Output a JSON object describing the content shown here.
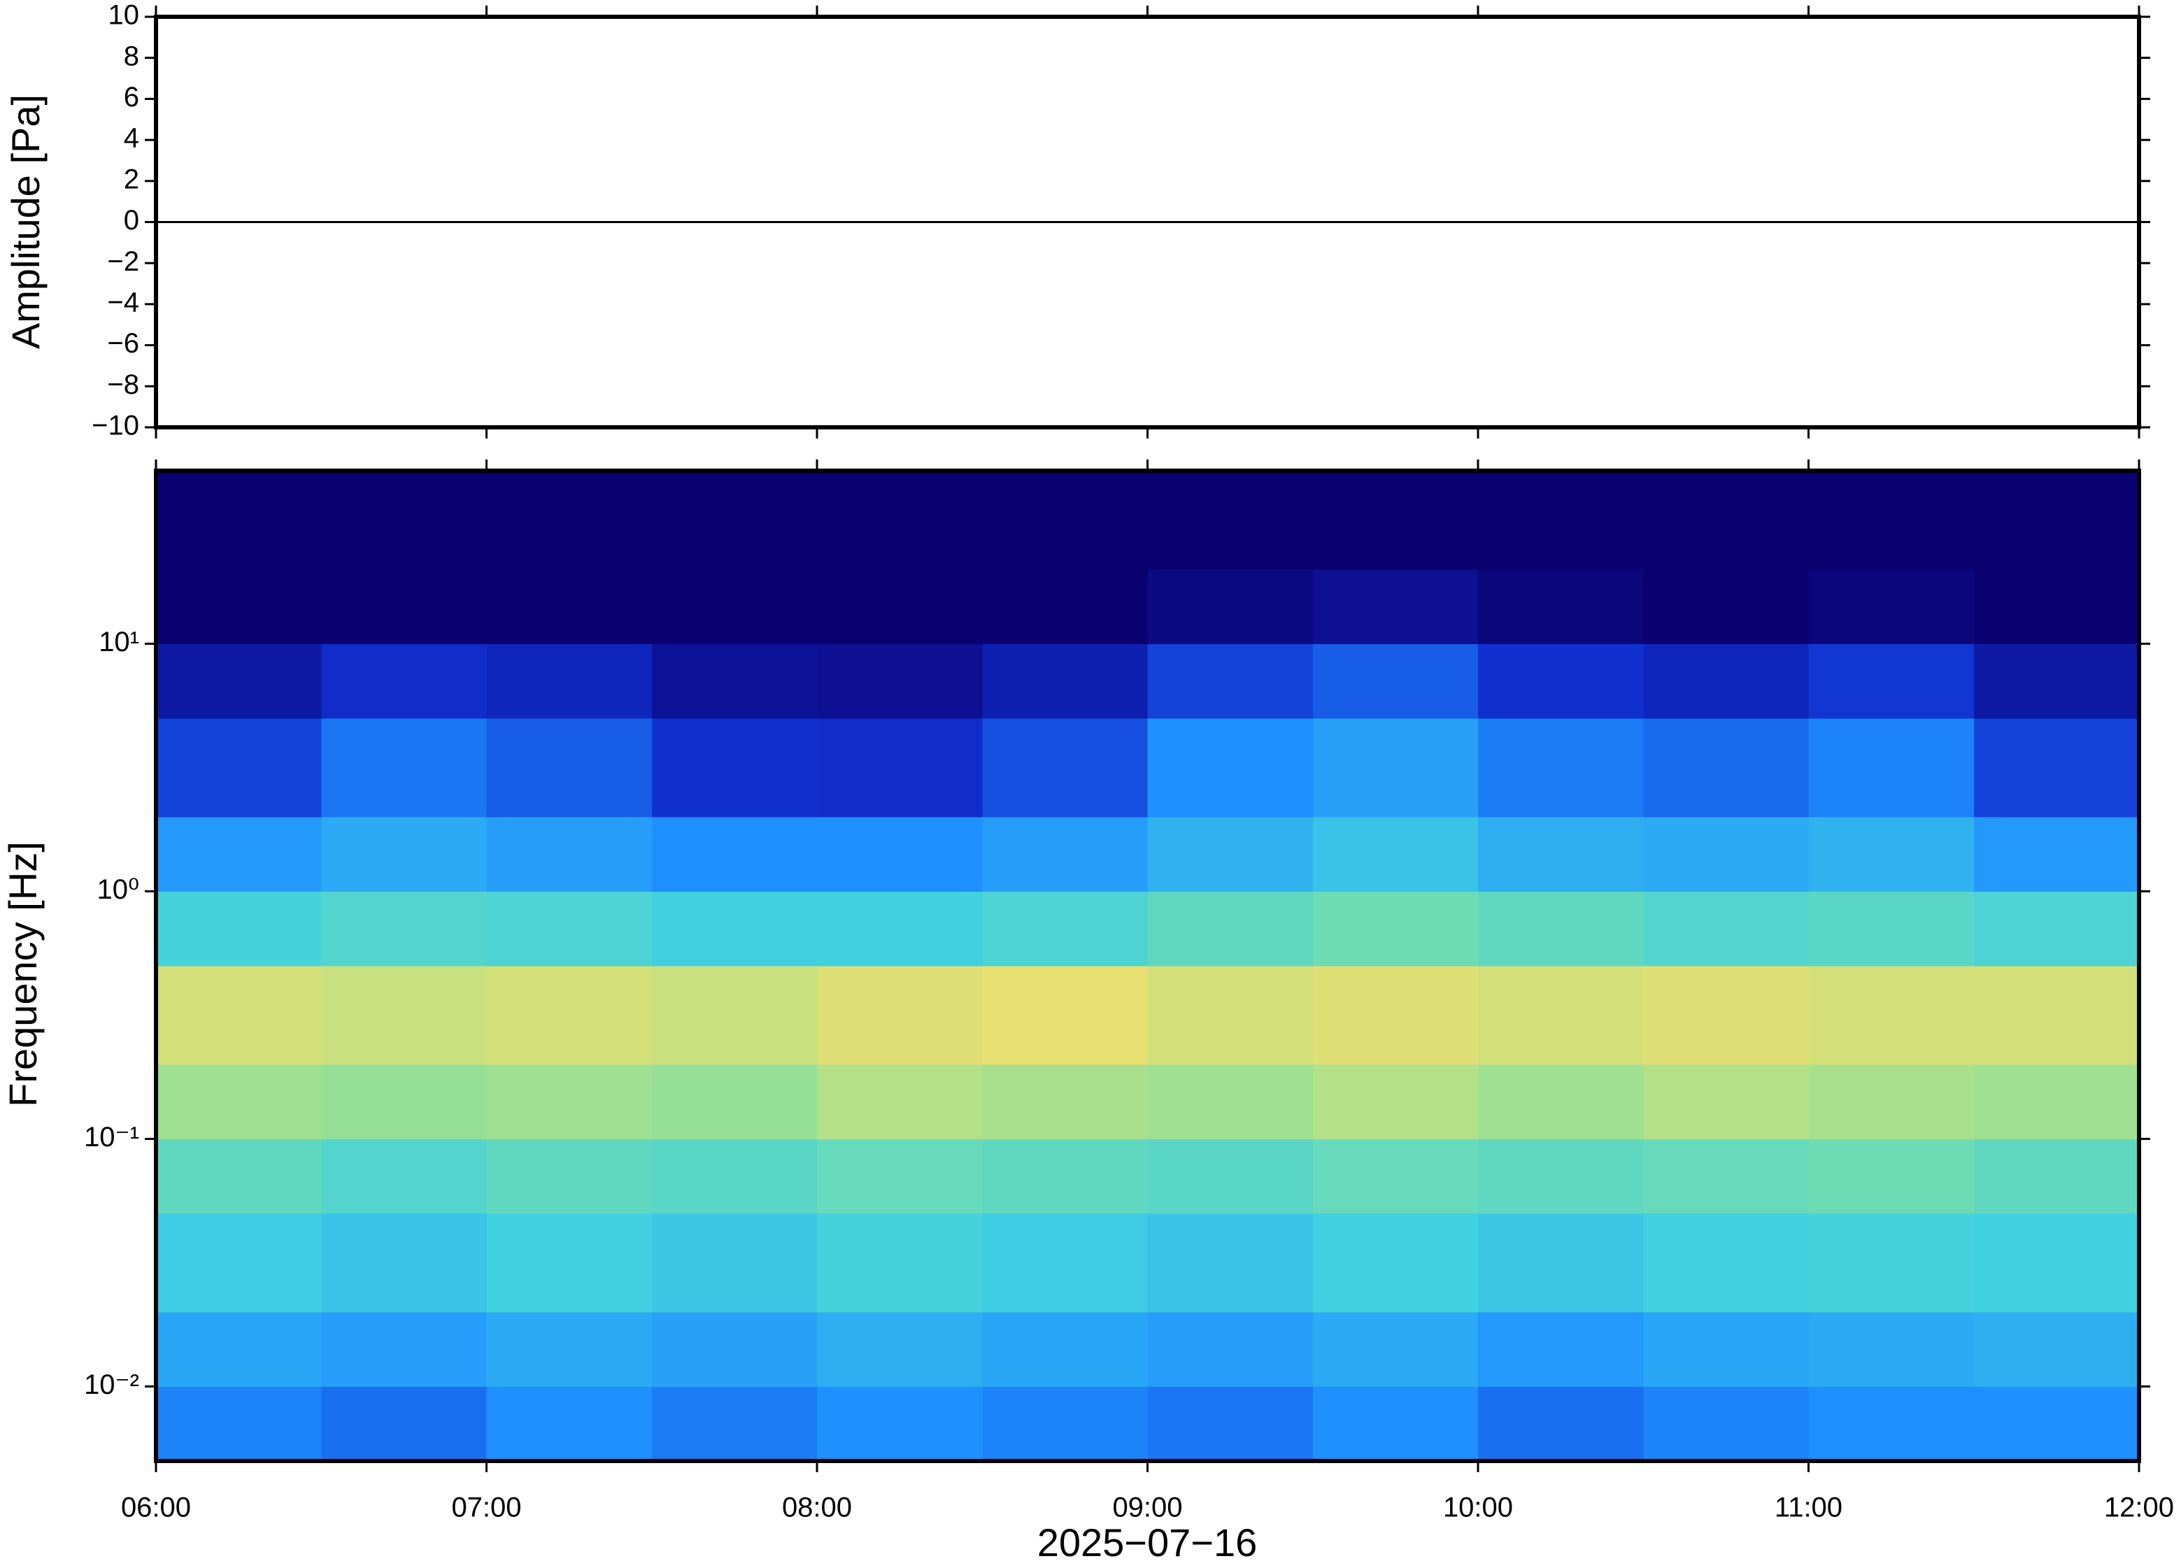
{
  "chart_data": [
    {
      "type": "line",
      "ylabel": "Amplitude [Pa]",
      "x": [
        "06:00",
        "07:00",
        "08:00",
        "09:00",
        "10:00",
        "11:00",
        "12:00"
      ],
      "values": [
        0,
        0,
        0,
        0,
        0,
        0,
        0
      ],
      "color": "#000000",
      "ylim": [
        -10,
        10
      ],
      "yticks": [
        {
          "value": -10,
          "label": "−10"
        },
        {
          "value": -8,
          "label": "−8"
        },
        {
          "value": -6,
          "label": "−6"
        },
        {
          "value": -4,
          "label": "−4"
        },
        {
          "value": -2,
          "label": "−2"
        },
        0,
        2,
        4,
        6,
        8,
        10
      ]
    },
    {
      "type": "heatmap",
      "ylabel": "Frequency [Hz]",
      "xlabel": "2025−07−16",
      "xlim": [
        "06:00",
        "12:00"
      ],
      "xticks": [
        "06:00",
        "07:00",
        "08:00",
        "09:00",
        "10:00",
        "11:00",
        "12:00"
      ],
      "ylim": [
        0.005,
        50
      ],
      "yscale": "log",
      "yticks": [
        {
          "value": 0.01,
          "label": "10⁻²"
        },
        {
          "value": 0.1,
          "label": "10⁻¹"
        },
        {
          "value": 1,
          "label": "10⁰"
        },
        {
          "value": 10,
          "label": "10¹"
        }
      ],
      "xbins": [
        "06:00",
        "06:30",
        "07:00",
        "07:30",
        "08:00",
        "08:30",
        "09:00",
        "09:30",
        "10:00",
        "10:30",
        "11:00",
        "11:30",
        "12:00"
      ],
      "ybins": [
        0.005,
        0.01,
        0.02,
        0.05,
        0.1,
        0.2,
        0.5,
        1,
        2,
        5,
        10,
        20,
        50
      ],
      "colorscale": [
        [
          0,
          "#0b0070"
        ],
        [
          0.15,
          "#1030d0"
        ],
        [
          0.3,
          "#1e90ff"
        ],
        [
          0.45,
          "#40d0e0"
        ],
        [
          0.55,
          "#80e0a0"
        ],
        [
          0.65,
          "#e8e070"
        ],
        [
          0.8,
          "#f0a040"
        ],
        [
          1,
          "#d03020"
        ]
      ],
      "z": [
        [
          0.28,
          0.25,
          0.3,
          0.27,
          0.3,
          0.28,
          0.26,
          0.3,
          0.25,
          0.28,
          0.3,
          0.3
        ],
        [
          0.35,
          0.33,
          0.36,
          0.34,
          0.37,
          0.35,
          0.33,
          0.36,
          0.32,
          0.35,
          0.36,
          0.37
        ],
        [
          0.44,
          0.42,
          0.45,
          0.43,
          0.46,
          0.44,
          0.42,
          0.45,
          0.43,
          0.45,
          0.46,
          0.45
        ],
        [
          0.5,
          0.48,
          0.5,
          0.49,
          0.51,
          0.5,
          0.49,
          0.51,
          0.5,
          0.51,
          0.52,
          0.5
        ],
        [
          0.58,
          0.57,
          0.58,
          0.57,
          0.6,
          0.59,
          0.58,
          0.6,
          0.58,
          0.6,
          0.59,
          0.58
        ],
        [
          0.63,
          0.62,
          0.63,
          0.62,
          0.64,
          0.65,
          0.63,
          0.64,
          0.63,
          0.64,
          0.63,
          0.63
        ],
        [
          0.46,
          0.48,
          0.47,
          0.45,
          0.45,
          0.47,
          0.5,
          0.52,
          0.5,
          0.48,
          0.49,
          0.47
        ],
        [
          0.32,
          0.36,
          0.33,
          0.3,
          0.3,
          0.33,
          0.38,
          0.42,
          0.37,
          0.36,
          0.38,
          0.32
        ],
        [
          0.18,
          0.26,
          0.22,
          0.15,
          0.14,
          0.2,
          0.3,
          0.34,
          0.27,
          0.24,
          0.28,
          0.18
        ],
        [
          0.08,
          0.14,
          0.12,
          0.06,
          0.05,
          0.1,
          0.18,
          0.22,
          0.15,
          0.12,
          0.16,
          0.08
        ],
        [
          0,
          0,
          0,
          0,
          0,
          0,
          0.03,
          0.05,
          0.02,
          0,
          0.02,
          0
        ],
        [
          0,
          0,
          0,
          0,
          0,
          0,
          0,
          0,
          0,
          0,
          0,
          0
        ]
      ]
    }
  ]
}
